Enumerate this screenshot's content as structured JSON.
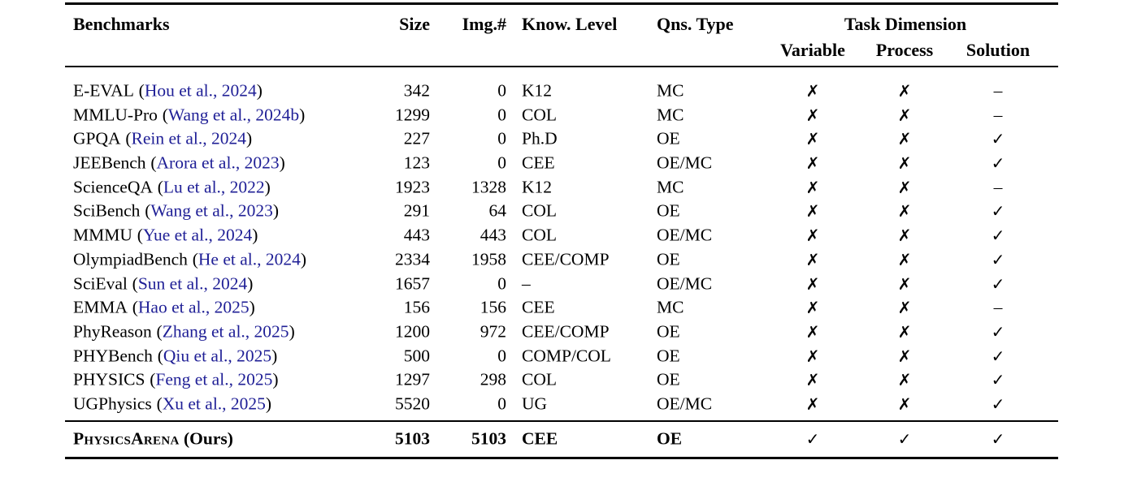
{
  "table": {
    "cite_open": "(",
    "cite_close": ")",
    "colors": {
      "citation_link": "#1f1f96",
      "text": "#000000",
      "background": "#ffffff"
    },
    "headers": {
      "benchmarks": "Benchmarks",
      "size": "Size",
      "img": "Img.#",
      "know": "Know. Level",
      "qns": "Qns. Type",
      "task_dimension": "Task Dimension",
      "variable": "Variable",
      "process": "Process",
      "solution": "Solution"
    },
    "rows": [
      {
        "name": "E-EVAL",
        "cite": "Hou et al., 2024",
        "size": "342",
        "img": "0",
        "know": "K12",
        "qns": "MC",
        "variable": "✗",
        "process": "✗",
        "solution": "–"
      },
      {
        "name": "MMLU-Pro",
        "cite": "Wang et al., 2024b",
        "size": "1299",
        "img": "0",
        "know": "COL",
        "qns": "MC",
        "variable": "✗",
        "process": "✗",
        "solution": "–"
      },
      {
        "name": "GPQA",
        "cite": "Rein et al., 2024",
        "size": "227",
        "img": "0",
        "know": "Ph.D",
        "qns": "OE",
        "variable": "✗",
        "process": "✗",
        "solution": "✓"
      },
      {
        "name": "JEEBench",
        "cite": "Arora et al., 2023",
        "size": "123",
        "img": "0",
        "know": "CEE",
        "qns": "OE/MC",
        "variable": "✗",
        "process": "✗",
        "solution": "✓"
      },
      {
        "name": "ScienceQA",
        "cite": "Lu et al., 2022",
        "size": "1923",
        "img": "1328",
        "know": "K12",
        "qns": "MC",
        "variable": "✗",
        "process": "✗",
        "solution": "–"
      },
      {
        "name": "SciBench",
        "cite": "Wang et al., 2023",
        "size": "291",
        "img": "64",
        "know": "COL",
        "qns": "OE",
        "variable": "✗",
        "process": "✗",
        "solution": "✓"
      },
      {
        "name": "MMMU",
        "cite": "Yue et al., 2024",
        "size": "443",
        "img": "443",
        "know": "COL",
        "qns": "OE/MC",
        "variable": "✗",
        "process": "✗",
        "solution": "✓"
      },
      {
        "name": "OlympiadBench",
        "cite": "He et al., 2024",
        "size": "2334",
        "img": "1958",
        "know": "CEE/COMP",
        "qns": "OE",
        "variable": "✗",
        "process": "✗",
        "solution": "✓"
      },
      {
        "name": "SciEval",
        "cite": "Sun et al., 2024",
        "size": "1657",
        "img": "0",
        "know": "–",
        "qns": "OE/MC",
        "variable": "✗",
        "process": "✗",
        "solution": "✓"
      },
      {
        "name": "EMMA",
        "cite": "Hao et al., 2025",
        "size": "156",
        "img": "156",
        "know": "CEE",
        "qns": "MC",
        "variable": "✗",
        "process": "✗",
        "solution": "–"
      },
      {
        "name": "PhyReason",
        "cite": "Zhang et al., 2025",
        "size": "1200",
        "img": "972",
        "know": "CEE/COMP",
        "qns": "OE",
        "variable": "✗",
        "process": "✗",
        "solution": "✓"
      },
      {
        "name": "PHYBench",
        "cite": "Qiu et al., 2025",
        "size": "500",
        "img": "0",
        "know": "COMP/COL",
        "qns": "OE",
        "variable": "✗",
        "process": "✗",
        "solution": "✓"
      },
      {
        "name": "PHYSICS",
        "cite": "Feng et al., 2025",
        "size": "1297",
        "img": "298",
        "know": "COL",
        "qns": "OE",
        "variable": "✗",
        "process": "✗",
        "solution": "✓"
      },
      {
        "name": "UGPhysics",
        "cite": "Xu et al., 2025",
        "size": "5520",
        "img": "0",
        "know": "UG",
        "qns": "OE/MC",
        "variable": "✗",
        "process": "✗",
        "solution": "✓"
      }
    ],
    "ours": {
      "name": "PhysicsArena",
      "suffix": " (Ours)",
      "size": "5103",
      "img": "5103",
      "know": "CEE",
      "qns": "OE",
      "variable": "✓",
      "process": "✓",
      "solution": "✓"
    }
  }
}
